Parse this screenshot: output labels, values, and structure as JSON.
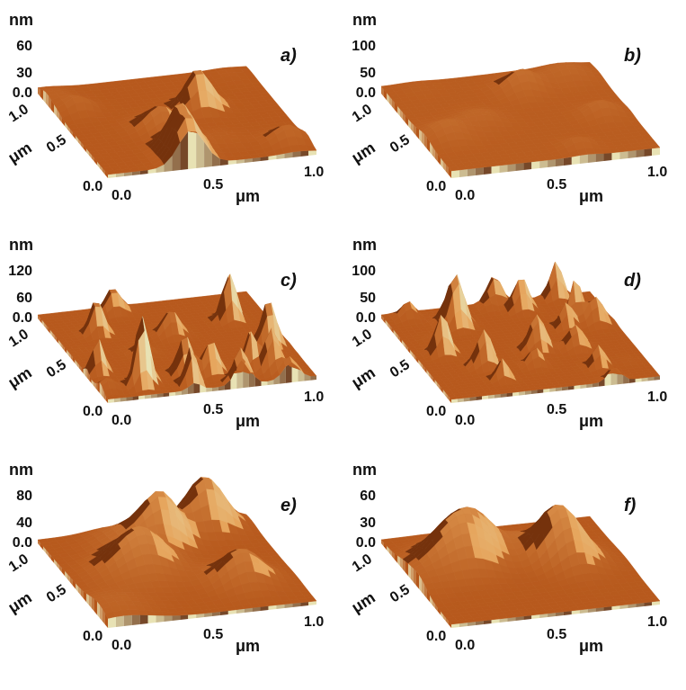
{
  "figure": {
    "panels": [
      {
        "label": "a)",
        "z_unit": "nm",
        "z_ticks": [
          "60",
          "30",
          "0.0"
        ],
        "y_ticks": [
          "1.0",
          "0.5",
          "0.0"
        ],
        "y_unit": "μm",
        "x_ticks": [
          "0.0",
          "0.5",
          "1.0"
        ],
        "x_unit": "μm",
        "texture": "ridged"
      },
      {
        "label": "b)",
        "z_unit": "nm",
        "z_ticks": [
          "100",
          "50",
          "0.0"
        ],
        "y_ticks": [
          "1.0",
          "0.5",
          "0.0"
        ],
        "y_unit": "μm",
        "x_ticks": [
          "0.0",
          "0.5",
          "1.0"
        ],
        "x_unit": "μm",
        "texture": "flat"
      },
      {
        "label": "c)",
        "z_unit": "nm",
        "z_ticks": [
          "120",
          "60",
          "0.0"
        ],
        "y_ticks": [
          "1.0",
          "0.5",
          "0.0"
        ],
        "y_unit": "μm",
        "x_ticks": [
          "0.0",
          "0.5",
          "1.0"
        ],
        "x_unit": "μm",
        "texture": "spiky"
      },
      {
        "label": "d)",
        "z_unit": "nm",
        "z_ticks": [
          "100",
          "50",
          "0.0"
        ],
        "y_ticks": [
          "1.0",
          "0.5",
          "0.0"
        ],
        "y_unit": "μm",
        "x_ticks": [
          "0.0",
          "0.5",
          "1.0"
        ],
        "x_unit": "μm",
        "texture": "spiky"
      },
      {
        "label": "e)",
        "z_unit": "nm",
        "z_ticks": [
          "80",
          "40",
          "0.0"
        ],
        "y_ticks": [
          "1.0",
          "0.5",
          "0.0"
        ],
        "y_unit": "μm",
        "x_ticks": [
          "0.0",
          "0.5",
          "1.0"
        ],
        "x_unit": "μm",
        "texture": "rolling"
      },
      {
        "label": "f)",
        "z_unit": "nm",
        "z_ticks": [
          "60",
          "30",
          "0.0"
        ],
        "y_ticks": [
          "1.0",
          "0.5",
          "0.0"
        ],
        "y_unit": "μm",
        "x_ticks": [
          "0.0",
          "0.5",
          "1.0"
        ],
        "x_unit": "μm",
        "texture": "rolling"
      }
    ]
  },
  "colors": {
    "surface_dark": "#5a2206",
    "surface_mid": "#b5561a",
    "surface_light": "#e6a35a",
    "highlight": "#e8e2b4",
    "label": "#111111"
  }
}
